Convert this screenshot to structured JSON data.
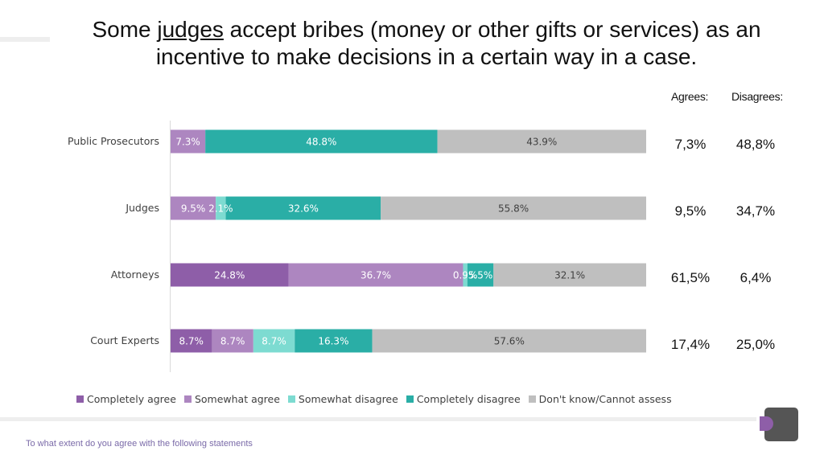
{
  "title": {
    "before": "Some ",
    "underlined": "judges",
    "after": " accept bribes (money or other gifts or services) as an",
    "line2": "incentive to make decisions in a certain way in a case."
  },
  "summary": {
    "agrees_header": "Agrees:",
    "disagrees_header": "Disagrees:",
    "rows": [
      {
        "agrees": "7,3%",
        "disagrees": "48,8%"
      },
      {
        "agrees": "9,5%",
        "disagrees": "34,7%"
      },
      {
        "agrees": "61,5%",
        "disagrees": "6,4%"
      },
      {
        "agrees": "17,4%",
        "disagrees": "25,0%"
      }
    ]
  },
  "chart_data": {
    "type": "bar",
    "orientation": "horizontal",
    "stacked": true,
    "categories": [
      "Public Prosecutors",
      "Judges",
      "Attorneys",
      "Court Experts"
    ],
    "series": [
      {
        "name": "Completely agree",
        "color": "#8e5ea8",
        "values": [
          0,
          0,
          24.8,
          8.7
        ],
        "labels": [
          "",
          "",
          "24.8%",
          "8.7%"
        ]
      },
      {
        "name": "Somewhat agree",
        "color": "#ad86c0",
        "values": [
          7.3,
          9.5,
          36.7,
          8.7
        ],
        "labels": [
          "7.3%",
          "9.5%",
          "36.7%",
          "8.7%"
        ]
      },
      {
        "name": "Somewhat disagree",
        "color": "#7ddbd1",
        "values": [
          0,
          2.1,
          0.9,
          8.7
        ],
        "labels": [
          "",
          "2.1%",
          "0.9%",
          "8.7%"
        ]
      },
      {
        "name": "Completely disagree",
        "color": "#2aaea6",
        "values": [
          48.8,
          32.6,
          5.5,
          16.3
        ],
        "labels": [
          "48.8%",
          "32.6%",
          "5.5%",
          "16.3%"
        ]
      },
      {
        "name": "Don't know/Cannot assess",
        "color": "#bfbfbf",
        "values": [
          43.9,
          55.8,
          32.1,
          57.6
        ],
        "labels": [
          "43.9%",
          "55.8%",
          "32.1%",
          "57.6%"
        ]
      }
    ],
    "xlim": [
      0,
      100
    ],
    "legend_position": "bottom"
  },
  "footer": "To what extent do you agree with the following statements",
  "colors": {
    "axis": "#d9d9d9",
    "label_light": "#ffffff"
  }
}
